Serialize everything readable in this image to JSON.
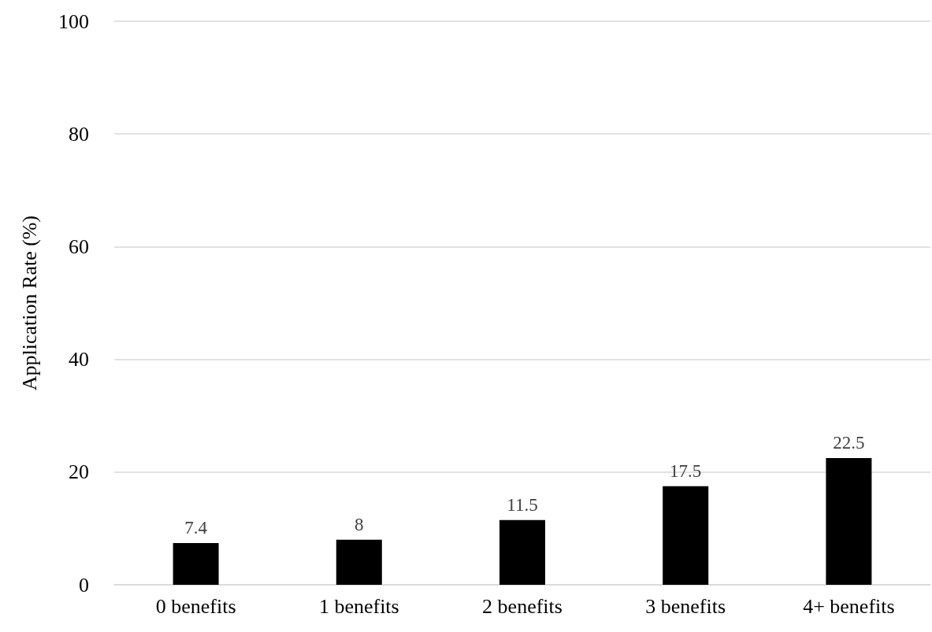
{
  "chart_data": {
    "type": "bar",
    "ylabel": "Application Rate (%)",
    "categories": [
      "0 benefits",
      "1 benefits",
      "2 benefits",
      "3 benefits",
      "4+ benefits"
    ],
    "values": [
      7.4,
      8,
      11.5,
      17.5,
      22.5
    ],
    "color": "#000000",
    "ylim": [
      0,
      100
    ],
    "yticks": [
      0,
      20,
      40,
      60,
      80,
      100
    ],
    "grid": "y",
    "data_labels": true
  }
}
